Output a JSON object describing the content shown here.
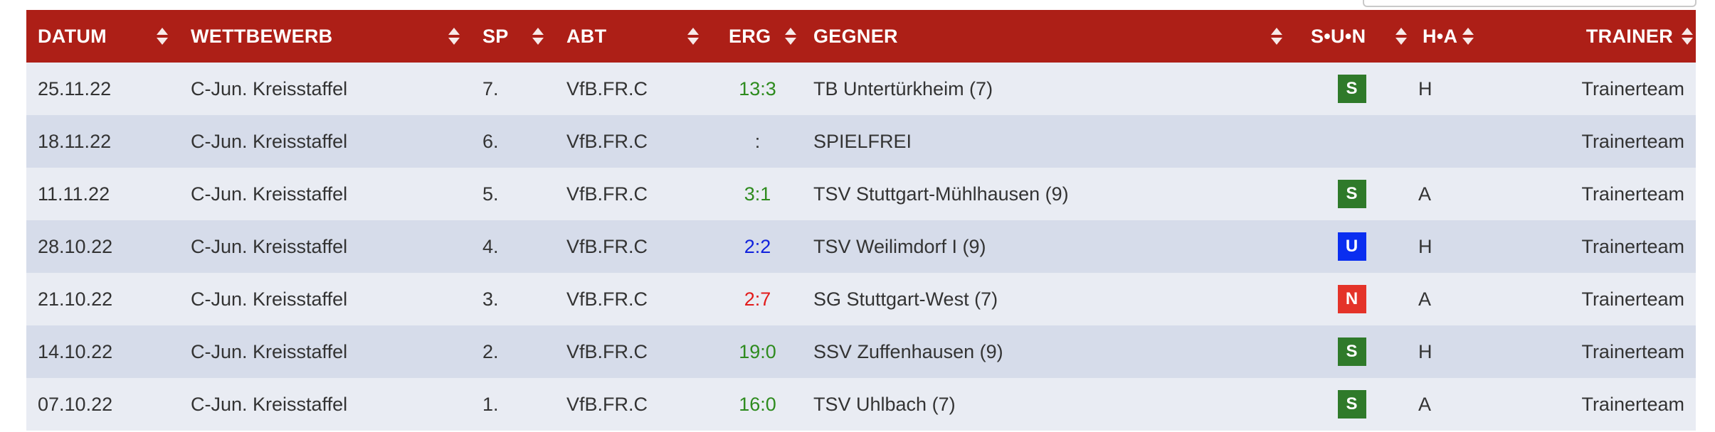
{
  "colors": {
    "header_bg": "#ad1f17",
    "row_odd": "#e9ecf3",
    "row_even": "#d6dcea",
    "win": "#2e8b1e",
    "draw": "#1122dd",
    "loss": "#e21b1b",
    "badge_S": "#2f7a2a",
    "badge_U": "#0a2ef0",
    "badge_N": "#e43329"
  },
  "header": {
    "datum": "DATUM",
    "wettbewerb": "WETTBEWERB",
    "sp": "SP",
    "abt": "ABT",
    "erg": "ERG",
    "gegner": "GEGNER",
    "sun": "S•U•N",
    "ha": "H•A",
    "trainer": "TRAINER"
  },
  "rows": [
    {
      "datum": "25.11.22",
      "wettbewerb": "C-Jun. Kreisstaffel",
      "sp": "7.",
      "abt": "VfB.FR.C",
      "erg": "13:3",
      "result": "win",
      "gegner": "TB Untertürkheim (7)",
      "sun": "S",
      "ha": "H",
      "trainer": "Trainerteam"
    },
    {
      "datum": "18.11.22",
      "wettbewerb": "C-Jun. Kreisstaffel",
      "sp": "6.",
      "abt": "VfB.FR.C",
      "erg": ":",
      "result": "none",
      "gegner": "SPIELFREI",
      "sun": "",
      "ha": "",
      "trainer": "Trainerteam"
    },
    {
      "datum": "11.11.22",
      "wettbewerb": "C-Jun. Kreisstaffel",
      "sp": "5.",
      "abt": "VfB.FR.C",
      "erg": "3:1",
      "result": "win",
      "gegner": "TSV Stuttgart-Mühlhausen (9)",
      "sun": "S",
      "ha": "A",
      "trainer": "Trainerteam"
    },
    {
      "datum": "28.10.22",
      "wettbewerb": "C-Jun. Kreisstaffel",
      "sp": "4.",
      "abt": "VfB.FR.C",
      "erg": "2:2",
      "result": "draw",
      "gegner": "TSV Weilimdorf I (9)",
      "sun": "U",
      "ha": "H",
      "trainer": "Trainerteam"
    },
    {
      "datum": "21.10.22",
      "wettbewerb": "C-Jun. Kreisstaffel",
      "sp": "3.",
      "abt": "VfB.FR.C",
      "erg": "2:7",
      "result": "loss",
      "gegner": "SG Stuttgart-West (7)",
      "sun": "N",
      "ha": "A",
      "trainer": "Trainerteam"
    },
    {
      "datum": "14.10.22",
      "wettbewerb": "C-Jun. Kreisstaffel",
      "sp": "2.",
      "abt": "VfB.FR.C",
      "erg": "19:0",
      "result": "win",
      "gegner": "SSV Zuffenhausen (9)",
      "sun": "S",
      "ha": "H",
      "trainer": "Trainerteam"
    },
    {
      "datum": "07.10.22",
      "wettbewerb": "C-Jun. Kreisstaffel",
      "sp": "1.",
      "abt": "VfB.FR.C",
      "erg": "16:0",
      "result": "win",
      "gegner": "TSV Uhlbach (7)",
      "sun": "S",
      "ha": "A",
      "trainer": "Trainerteam"
    }
  ]
}
